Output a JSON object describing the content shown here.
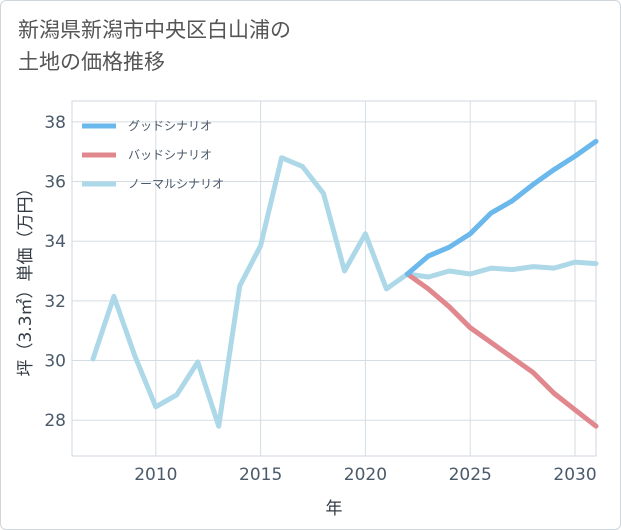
{
  "title_line1": "新潟県新潟市中央区白山浦の",
  "title_line2": "土地の価格推移",
  "chart_data": {
    "type": "line",
    "xlabel": "年",
    "ylabel": "坪（3.3㎡）単価（万円）",
    "xlim": [
      2006.0,
      2031.0
    ],
    "ylim": [
      26.8,
      38.7
    ],
    "xticks": [
      2010,
      2015,
      2020,
      2025,
      2030
    ],
    "yticks": [
      28,
      30,
      32,
      34,
      36,
      38
    ],
    "grid": true,
    "legend_position": "top-left",
    "series": [
      {
        "name": "グッドシナリオ",
        "color": "#6ab8ec",
        "x": [
          2022,
          2023,
          2024,
          2025,
          2026,
          2027,
          2028,
          2029,
          2030,
          2031
        ],
        "y": [
          32.9,
          33.5,
          33.8,
          34.25,
          34.95,
          35.35,
          35.9,
          36.4,
          36.85,
          37.35
        ]
      },
      {
        "name": "バッドシナリオ",
        "color": "#e0888e",
        "x": [
          2022,
          2023,
          2024,
          2025,
          2026,
          2027,
          2028,
          2029,
          2030,
          2031
        ],
        "y": [
          32.9,
          32.4,
          31.8,
          31.1,
          30.6,
          30.1,
          29.6,
          28.9,
          28.35,
          27.8
        ]
      },
      {
        "name": "ノーマルシナリオ",
        "color": "#add8e8",
        "x": [
          2007,
          2008,
          2009,
          2010,
          2011,
          2012,
          2013,
          2014,
          2015,
          2016,
          2017,
          2018,
          2019,
          2020,
          2021,
          2022,
          2023,
          2024,
          2025,
          2026,
          2027,
          2028,
          2029,
          2030,
          2031
        ],
        "y": [
          30.05,
          32.15,
          30.15,
          28.45,
          28.85,
          29.95,
          27.8,
          32.5,
          33.85,
          36.8,
          36.5,
          35.6,
          33.0,
          34.25,
          32.4,
          32.9,
          32.8,
          33.0,
          32.9,
          33.1,
          33.05,
          33.15,
          33.1,
          33.3,
          33.25
        ]
      }
    ]
  }
}
